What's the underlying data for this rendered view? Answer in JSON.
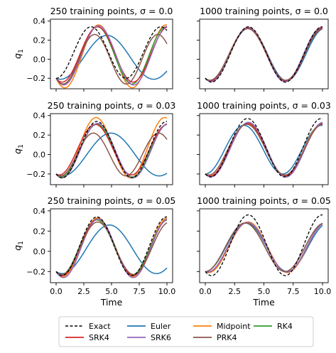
{
  "chart_data": {
    "type": "line",
    "layout": "3x2 grid of subplots",
    "sharex": true,
    "sharey": true,
    "xlabel": "Time",
    "ylabel": "q",
    "ylabel_subscript": "1",
    "xlim": [
      0,
      10
    ],
    "ylim": [
      -0.31,
      0.42
    ],
    "xticks": [
      "0.0",
      "2.5",
      "5.0",
      "7.5",
      "10.0"
    ],
    "yticks": [
      "-0.2",
      "0.0",
      "0.2",
      "0.4"
    ],
    "grid": false,
    "legend": {
      "placement": "bottom-center, outside plots",
      "columns": 4,
      "entries": [
        {
          "label": "Exact",
          "color": "#000000",
          "dashed": true
        },
        {
          "label": "Euler",
          "color": "#1f77b4",
          "dashed": false
        },
        {
          "label": "Midpoint",
          "color": "#ff7f0e",
          "dashed": false
        },
        {
          "label": "RK4",
          "color": "#2ca02c",
          "dashed": false
        },
        {
          "label": "SRK4",
          "color": "#d62728",
          "dashed": false
        },
        {
          "label": "SRK6",
          "color": "#9467bd",
          "dashed": false
        },
        {
          "label": "PRK4",
          "color": "#8c564b",
          "dashed": false
        }
      ]
    },
    "panels": [
      {
        "title": "250 training points, σ = 0.0",
        "series": [
          {
            "name": "Exact",
            "amplitude": 0.27,
            "period": 6.3,
            "offset": 0.07
          },
          {
            "name": "Euler",
            "amplitude": 0.23,
            "period": 8.4,
            "offset": 0.02
          },
          {
            "name": "Midpoint",
            "amplitude": 0.33,
            "period": 6.1,
            "offset": 0.03
          },
          {
            "name": "RK4",
            "amplitude": 0.3,
            "period": 6.2,
            "offset": 0.04
          },
          {
            "name": "SRK4",
            "amplitude": 0.29,
            "period": 6.4,
            "offset": 0.05
          },
          {
            "name": "SRK6",
            "amplitude": 0.31,
            "period": 6.3,
            "offset": 0.04
          },
          {
            "name": "PRK4",
            "amplitude": 0.26,
            "period": 5.7,
            "offset": 0.0
          }
        ]
      },
      {
        "title": "1000 training points, σ = 0.0",
        "series": [
          {
            "name": "Exact",
            "amplitude": 0.29,
            "period": 6.3,
            "offset": 0.05
          },
          {
            "name": "Euler",
            "amplitude": 0.275,
            "period": 6.5,
            "offset": 0.05
          },
          {
            "name": "Midpoint",
            "amplitude": 0.285,
            "period": 6.35,
            "offset": 0.05
          },
          {
            "name": "RK4",
            "amplitude": 0.28,
            "period": 6.35,
            "offset": 0.05
          },
          {
            "name": "SRK4",
            "amplitude": 0.28,
            "period": 6.4,
            "offset": 0.05
          },
          {
            "name": "SRK6",
            "amplitude": 0.285,
            "period": 6.3,
            "offset": 0.05
          },
          {
            "name": "PRK4",
            "amplitude": 0.27,
            "period": 6.45,
            "offset": 0.05
          }
        ]
      },
      {
        "title": "250 training points, σ = 0.03",
        "series": [
          {
            "name": "Exact",
            "amplitude": 0.29,
            "period": 6.3,
            "offset": 0.05
          },
          {
            "name": "Euler",
            "amplitude": 0.22,
            "period": 8.7,
            "offset": 0.0
          },
          {
            "name": "Midpoint",
            "amplitude": 0.31,
            "period": 6.2,
            "offset": 0.07
          },
          {
            "name": "RK4",
            "amplitude": 0.27,
            "period": 6.4,
            "offset": 0.04
          },
          {
            "name": "SRK4",
            "amplitude": 0.26,
            "period": 6.5,
            "offset": 0.05
          },
          {
            "name": "SRK6",
            "amplitude": 0.28,
            "period": 6.4,
            "offset": 0.04
          },
          {
            "name": "PRK4",
            "amplitude": 0.22,
            "period": 5.9,
            "offset": 0.0
          }
        ]
      },
      {
        "title": "1000 training points, σ = 0.03",
        "series": [
          {
            "name": "Exact",
            "amplitude": 0.3,
            "period": 6.3,
            "offset": 0.07
          },
          {
            "name": "Euler",
            "amplitude": 0.25,
            "period": 6.6,
            "offset": 0.05
          },
          {
            "name": "Midpoint",
            "amplitude": 0.27,
            "period": 6.4,
            "offset": 0.05
          },
          {
            "name": "RK4",
            "amplitude": 0.28,
            "period": 6.4,
            "offset": 0.05
          },
          {
            "name": "SRK4",
            "amplitude": 0.27,
            "period": 6.45,
            "offset": 0.05
          },
          {
            "name": "SRK6",
            "amplitude": 0.28,
            "period": 6.4,
            "offset": 0.05
          },
          {
            "name": "PRK4",
            "amplitude": 0.26,
            "period": 6.5,
            "offset": 0.05
          }
        ]
      },
      {
        "title": "250 training points, σ = 0.05",
        "series": [
          {
            "name": "Exact",
            "amplitude": 0.29,
            "period": 6.3,
            "offset": 0.05
          },
          {
            "name": "Euler",
            "amplitude": 0.24,
            "period": 8.5,
            "offset": 0.02
          },
          {
            "name": "Midpoint",
            "amplitude": 0.29,
            "period": 6.3,
            "offset": 0.04
          },
          {
            "name": "RK4",
            "amplitude": 0.27,
            "period": 6.4,
            "offset": 0.04
          },
          {
            "name": "SRK4",
            "amplitude": 0.28,
            "period": 6.4,
            "offset": 0.04
          },
          {
            "name": "SRK6",
            "amplitude": 0.29,
            "period": 6.3,
            "offset": 0.03
          },
          {
            "name": "PRK4",
            "amplitude": 0.26,
            "period": 6.5,
            "offset": 0.03
          }
        ]
      },
      {
        "title": "1000 training points, σ = 0.05",
        "series": [
          {
            "name": "Exact",
            "amplitude": 0.3,
            "period": 6.3,
            "offset": 0.06
          },
          {
            "name": "Euler",
            "amplitude": 0.24,
            "period": 7.0,
            "offset": 0.04
          },
          {
            "name": "Midpoint",
            "amplitude": 0.25,
            "period": 6.7,
            "offset": 0.04
          },
          {
            "name": "RK4",
            "amplitude": 0.24,
            "period": 6.8,
            "offset": 0.04
          },
          {
            "name": "SRK4",
            "amplitude": 0.245,
            "period": 6.75,
            "offset": 0.04
          },
          {
            "name": "SRK6",
            "amplitude": 0.245,
            "period": 6.75,
            "offset": 0.04
          },
          {
            "name": "PRK4",
            "amplitude": 0.24,
            "period": 6.8,
            "offset": 0.04
          }
        ]
      }
    ]
  }
}
